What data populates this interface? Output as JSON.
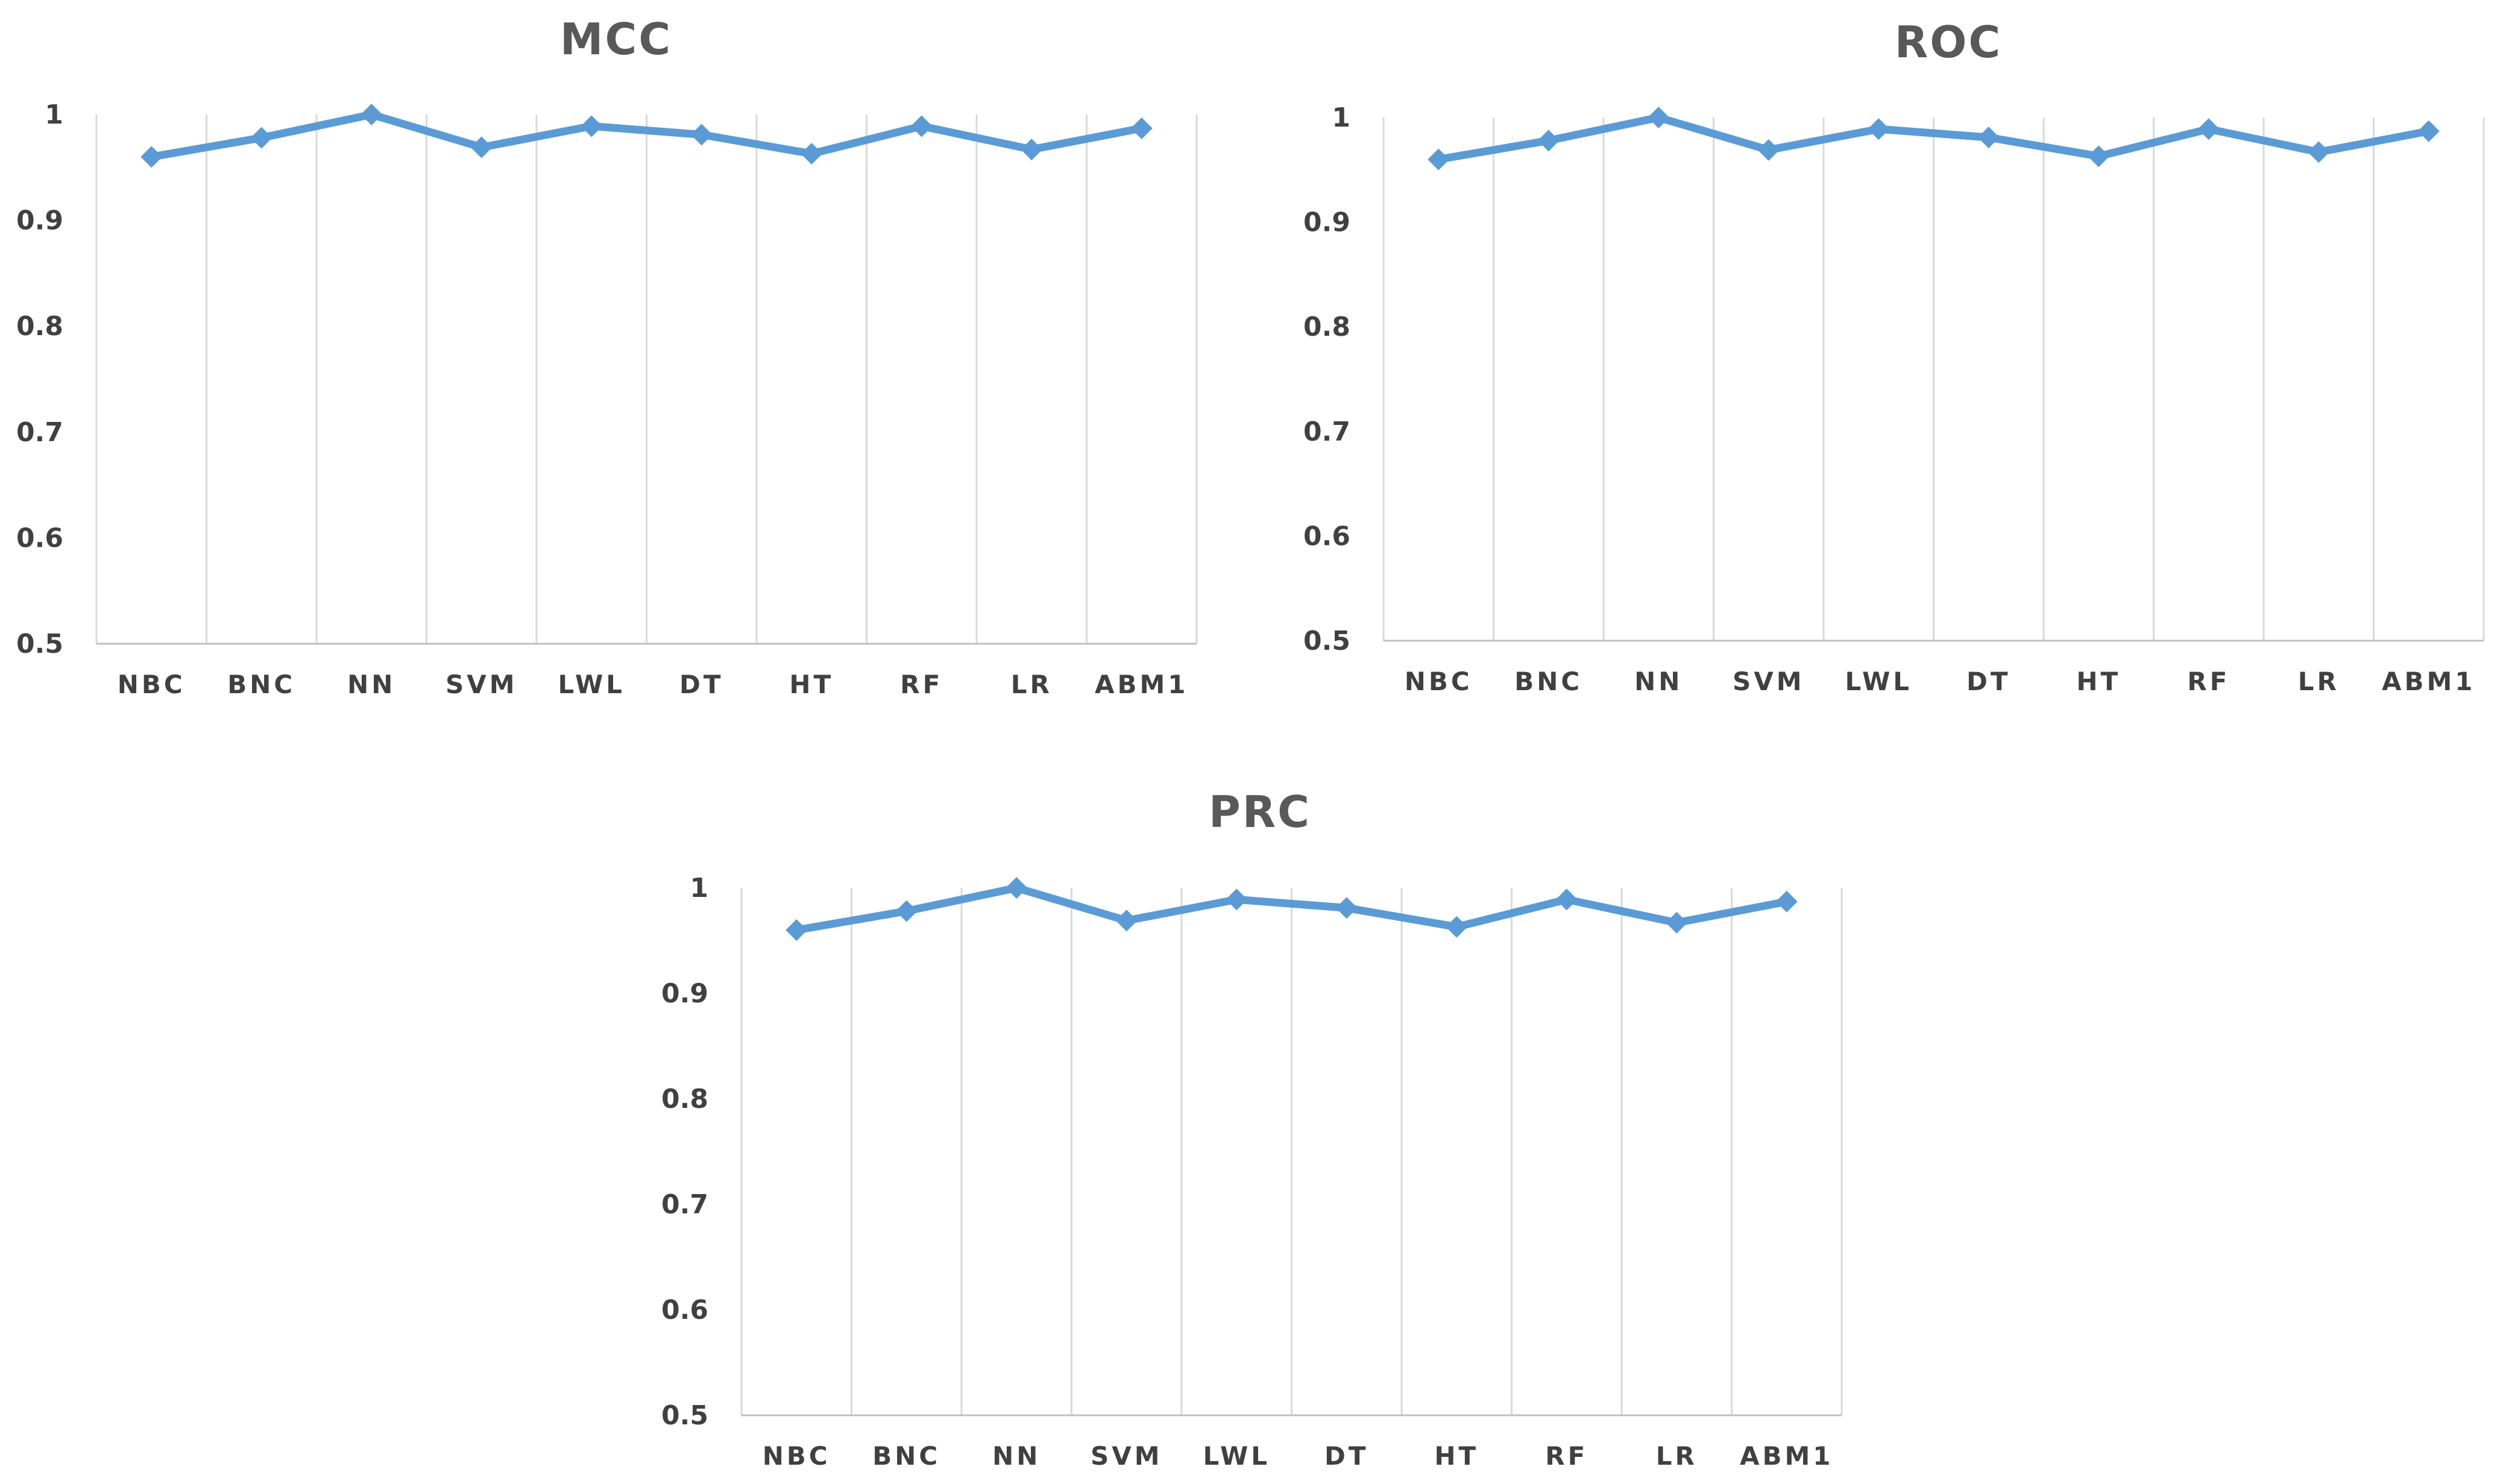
{
  "accent_color": "#5b9bd5",
  "chart_data": [
    {
      "type": "line",
      "title": "MCC",
      "categories": [
        "NBC",
        "BNC",
        "NN",
        "SVM",
        "LWL",
        "DT",
        "HT",
        "RF",
        "LR",
        "ABM1"
      ],
      "values": [
        0.96,
        0.978,
        1.0,
        0.969,
        0.989,
        0.981,
        0.963,
        0.989,
        0.967,
        0.987
      ],
      "ylim": [
        0.5,
        1.0
      ],
      "yticks": [
        "0.5",
        "0.6",
        "0.7",
        "0.8",
        "0.9",
        "1"
      ],
      "xlabel": "",
      "ylabel": "",
      "grid": "vertical"
    },
    {
      "type": "line",
      "title": "ROC",
      "categories": [
        "NBC",
        "BNC",
        "NN",
        "SVM",
        "LWL",
        "DT",
        "HT",
        "RF",
        "LR",
        "ABM1"
      ],
      "values": [
        0.96,
        0.978,
        1.0,
        0.969,
        0.989,
        0.981,
        0.963,
        0.989,
        0.967,
        0.987
      ],
      "ylim": [
        0.5,
        1.0
      ],
      "yticks": [
        "0.5",
        "0.6",
        "0.7",
        "0.8",
        "0.9",
        "1"
      ],
      "xlabel": "",
      "ylabel": "",
      "grid": "vertical"
    },
    {
      "type": "line",
      "title": "PRC",
      "categories": [
        "NBC",
        "BNC",
        "NN",
        "SVM",
        "LWL",
        "DT",
        "HT",
        "RF",
        "LR",
        "ABM1"
      ],
      "values": [
        0.96,
        0.978,
        1.0,
        0.969,
        0.989,
        0.981,
        0.963,
        0.989,
        0.967,
        0.987
      ],
      "ylim": [
        0.5,
        1.0
      ],
      "yticks": [
        "0.5",
        "0.6",
        "0.7",
        "0.8",
        "0.9",
        "1"
      ],
      "xlabel": "",
      "ylabel": "",
      "grid": "vertical"
    }
  ]
}
